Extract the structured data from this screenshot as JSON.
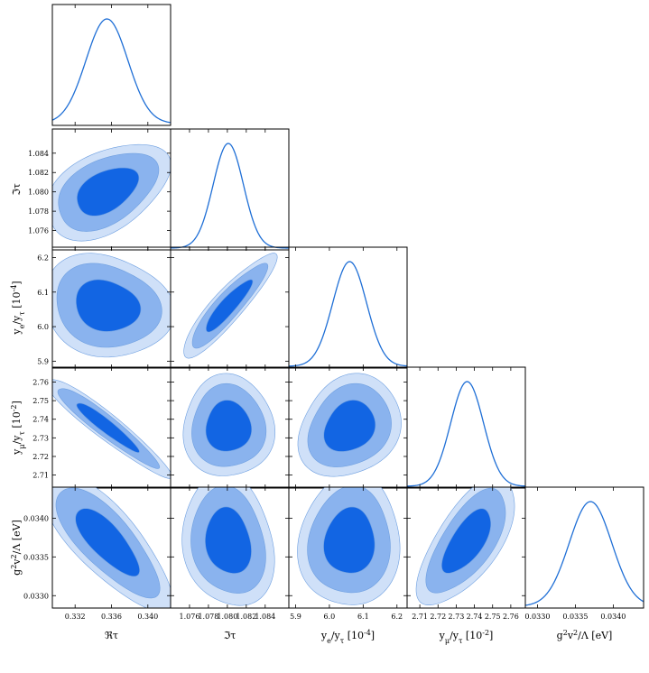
{
  "chart_data": {
    "type": "corner",
    "credible_levels": [
      "68%",
      "95%",
      "99%"
    ],
    "colors": {
      "line": "#1f6fd6",
      "inner": "#1265e3",
      "middle": "#8ab3ee",
      "outer": "#cfe0f8",
      "edge": "#6e9fe0"
    },
    "parameters": [
      {
        "label": "ℜτ",
        "mean": 0.3355,
        "sigma": 0.0023,
        "range": [
          0.3295,
          0.3425
        ],
        "ticks": [
          0.332,
          0.336,
          0.34
        ],
        "tick_labels": [
          "0.332",
          "0.336",
          "0.340"
        ]
      },
      {
        "label": "ℑτ",
        "mean": 1.0801,
        "sigma": 0.0016,
        "range": [
          1.074,
          1.0865
        ],
        "ticks": [
          1.076,
          1.078,
          1.08,
          1.082,
          1.084
        ],
        "tick_labels": [
          "1.076",
          "1.078",
          "1.080",
          "1.082",
          "1.084"
        ]
      },
      {
        "label": "y_e / y_τ [10^-4]",
        "mean": 6.06,
        "sigma": 0.05,
        "range": [
          5.88,
          6.23
        ],
        "ticks": [
          5.9,
          6.0,
          6.1,
          6.2
        ],
        "tick_labels": [
          "5.9",
          "6.0",
          "6.1",
          "6.2"
        ]
      },
      {
        "label": "y_μ / y_τ [10^-2]",
        "mean": 2.736,
        "sigma": 0.009,
        "range": [
          2.703,
          2.768
        ],
        "ticks": [
          2.71,
          2.72,
          2.73,
          2.74,
          2.75,
          2.76
        ],
        "tick_labels": [
          "2.71",
          "2.72",
          "2.73",
          "2.74",
          "2.75",
          "2.76"
        ]
      },
      {
        "label": "g²v²/Λ [eV]",
        "mean": 0.0337,
        "sigma": 0.00028,
        "range": [
          0.03284,
          0.0344
        ],
        "ticks": [
          0.033,
          0.0335,
          0.034
        ],
        "tick_labels": [
          "0.0330",
          "0.0335",
          "0.0340"
        ]
      }
    ],
    "correlations": {
      "1-0": 0.45,
      "2-0": -0.1,
      "2-1": 0.9,
      "3-0": -0.95,
      "3-1": -0.05,
      "3-2": 0.15,
      "4-0": -0.75,
      "4-1": -0.1,
      "4-2": 0.1,
      "4-3": 0.7
    },
    "axis_labels": {
      "x": [
        "ℜτ",
        "ℑτ",
        "y_e/y_τ [10^-4]",
        "y_μ/y_τ [10^-2]",
        "g²v²/Λ [eV]"
      ],
      "y": [
        "ℑτ",
        "y_e/y_τ [10^-4]",
        "y_μ/y_τ [10^-2]",
        "g²v²/Λ [eV]"
      ]
    }
  }
}
